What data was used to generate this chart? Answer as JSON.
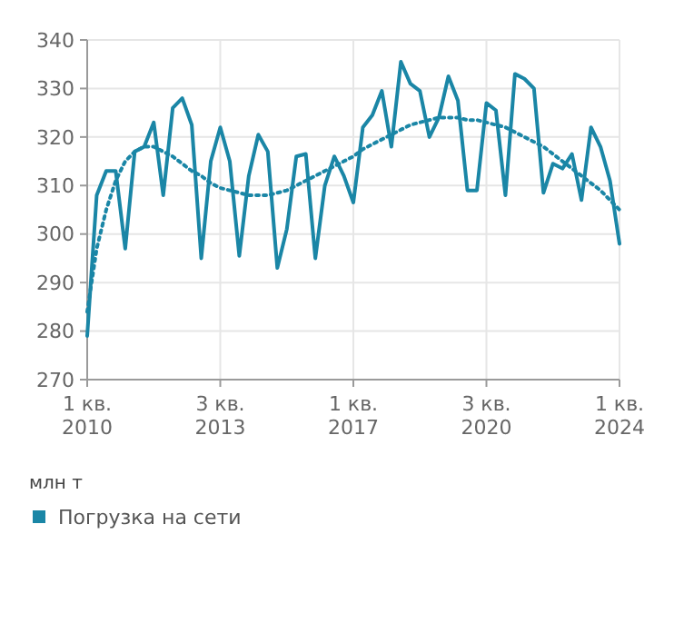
{
  "chart_data": {
    "type": "line",
    "ylabel": "млн т",
    "categories": [
      "1 кв. 2010",
      null,
      null,
      null,
      null,
      null,
      null,
      null,
      null,
      null,
      null,
      null,
      null,
      null,
      "3 кв. 2013",
      null,
      null,
      null,
      null,
      null,
      null,
      null,
      null,
      null,
      null,
      null,
      null,
      null,
      "1 кв. 2017",
      null,
      null,
      null,
      null,
      null,
      null,
      null,
      null,
      null,
      null,
      null,
      null,
      null,
      "3 кв. 2020",
      null,
      null,
      null,
      null,
      null,
      null,
      null,
      null,
      null,
      null,
      null,
      null,
      null,
      "1 кв. 2024"
    ],
    "series": [
      {
        "name": "Погрузка на сети",
        "color": "#1a86a6",
        "line_style": "solid",
        "values": [
          279,
          308,
          313,
          313,
          297,
          317,
          318,
          323,
          308,
          326,
          328,
          322.5,
          295,
          315,
          322,
          315,
          295.5,
          312,
          320.5,
          317,
          293,
          301,
          316,
          316.5,
          295,
          310,
          316,
          312,
          306.5,
          322,
          324.5,
          329.5,
          318,
          335.5,
          331,
          329.5,
          320,
          324,
          332.5,
          327.5,
          309,
          309,
          327,
          325.5,
          308,
          333,
          332,
          330,
          308.5,
          314.5,
          313.5,
          316.5,
          307,
          322,
          318,
          311,
          298
        ]
      },
      {
        "type": "line",
        "color": "#1a86a6",
        "line_style": "dotted",
        "values": [
          284,
          297,
          305,
          311,
          315,
          317,
          318,
          318,
          317,
          316,
          314.5,
          313,
          312,
          310.5,
          309.5,
          309,
          308.5,
          308,
          308,
          308,
          308.5,
          309,
          310,
          311,
          312,
          313,
          314,
          315,
          316,
          317.5,
          318.5,
          319.5,
          320.5,
          321.5,
          322.5,
          323,
          323.5,
          324,
          324,
          324,
          323.5,
          323.5,
          323,
          322.5,
          322,
          321,
          320,
          319,
          318,
          316.5,
          315,
          313.5,
          312,
          310.5,
          309,
          307,
          305
        ]
      }
    ],
    "ylim": [
      270,
      340
    ],
    "yticks": [
      270,
      280,
      290,
      300,
      310,
      320,
      330,
      340
    ],
    "grid": true,
    "legend": "bottom left",
    "marker": "none"
  }
}
